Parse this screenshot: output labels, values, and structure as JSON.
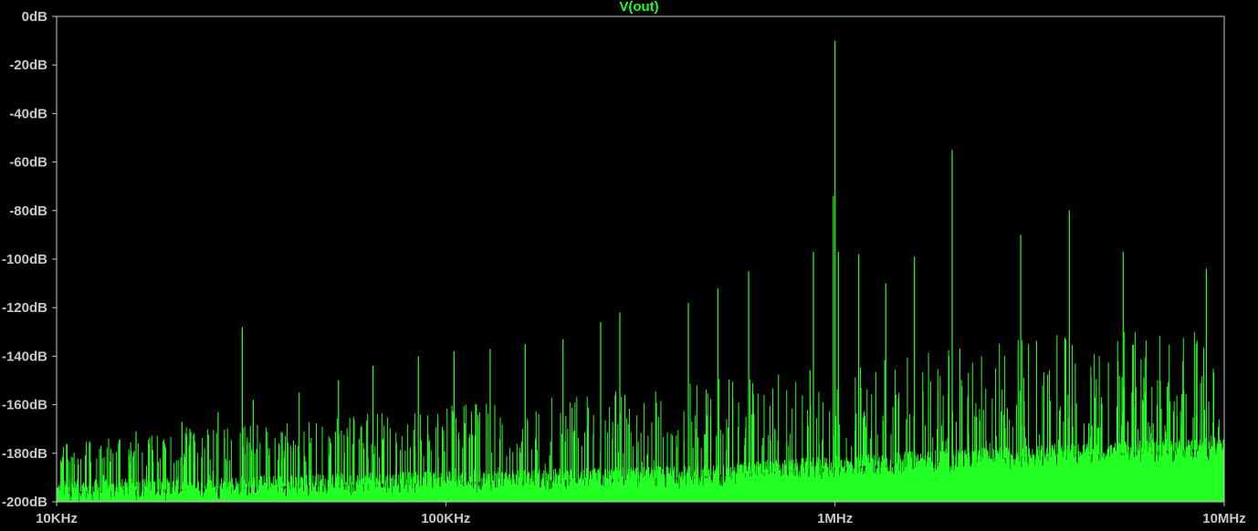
{
  "chart_data": {
    "type": "line",
    "title": "V(out)",
    "xscale": "log",
    "xlim_hz": [
      10000,
      10000000
    ],
    "ylim_db": [
      -200,
      0
    ],
    "x_ticks": [
      {
        "value": 10000,
        "label": "10KHz"
      },
      {
        "value": 100000,
        "label": "100KHz"
      },
      {
        "value": 1000000,
        "label": "1MHz"
      },
      {
        "value": 10000000,
        "label": "10MHz"
      }
    ],
    "y_ticks": [
      {
        "value": 0,
        "label": "0dB"
      },
      {
        "value": -20,
        "label": "-20dB"
      },
      {
        "value": -40,
        "label": "-40dB"
      },
      {
        "value": -60,
        "label": "-60dB"
      },
      {
        "value": -80,
        "label": "-80dB"
      },
      {
        "value": -100,
        "label": "-100dB"
      },
      {
        "value": -120,
        "label": "-120dB"
      },
      {
        "value": -140,
        "label": "-140dB"
      },
      {
        "value": -160,
        "label": "-160dB"
      },
      {
        "value": -180,
        "label": "-180dB"
      },
      {
        "value": -200,
        "label": "-200dB"
      }
    ],
    "grid": false,
    "colors": {
      "background": "#000000",
      "frame": "#c8c8c8",
      "trace": "#22ff22",
      "ticks": "#c8c8c8"
    },
    "series": [
      {
        "name": "V(out)",
        "peaks": [
          {
            "x": 1000000,
            "y": -10
          },
          {
            "x": 1020000,
            "y": -97
          },
          {
            "x": 990000,
            "y": -74
          },
          {
            "x": 2000000,
            "y": -55
          },
          {
            "x": 4000000,
            "y": -80
          },
          {
            "x": 3000000,
            "y": -90
          },
          {
            "x": 5500000,
            "y": -97
          },
          {
            "x": 9000000,
            "y": -104
          },
          {
            "x": 880000,
            "y": -97
          },
          {
            "x": 1150000,
            "y": -98
          },
          {
            "x": 1350000,
            "y": -110
          },
          {
            "x": 1600000,
            "y": -99
          },
          {
            "x": 600000,
            "y": -105
          },
          {
            "x": 500000,
            "y": -112
          },
          {
            "x": 420000,
            "y": -118
          },
          {
            "x": 280000,
            "y": -122
          },
          {
            "x": 250000,
            "y": -126
          },
          {
            "x": 200000,
            "y": -133
          },
          {
            "x": 160000,
            "y": -135
          },
          {
            "x": 130000,
            "y": -137
          },
          {
            "x": 105000,
            "y": -138
          },
          {
            "x": 85000,
            "y": -140
          },
          {
            "x": 65000,
            "y": -144
          },
          {
            "x": 53000,
            "y": -150
          },
          {
            "x": 42000,
            "y": -155
          },
          {
            "x": 30000,
            "y": -128
          },
          {
            "x": 32000,
            "y": -158
          },
          {
            "x": 26000,
            "y": -163
          },
          {
            "x": 21000,
            "y": -167
          },
          {
            "x": 22000,
            "y": -170
          },
          {
            "x": 16000,
            "y": -171
          },
          {
            "x": 13000,
            "y": -177
          }
        ],
        "noise_floor_db": [
          {
            "x": 10000,
            "y": -196
          },
          {
            "x": 100000,
            "y": -192
          },
          {
            "x": 400000,
            "y": -190
          },
          {
            "x": 1000000,
            "y": -186
          },
          {
            "x": 2000000,
            "y": -183
          },
          {
            "x": 10000000,
            "y": -178
          }
        ]
      }
    ]
  }
}
